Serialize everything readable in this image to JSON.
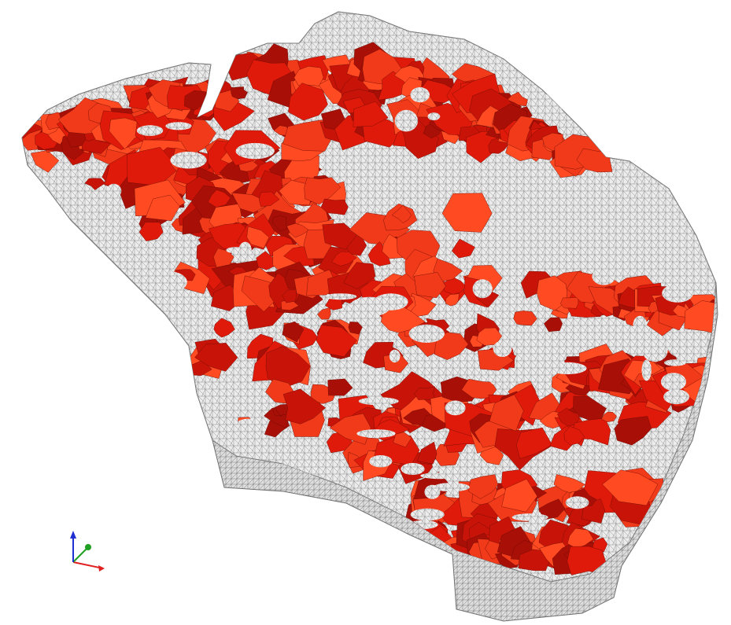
{
  "viewer": {
    "background": "#ffffff",
    "mesh_color": "#cfcfcf",
    "mesh_line_color": "#8a8a8a",
    "highlight_colors": [
      "#e01a0a",
      "#c81408",
      "#f03a1a",
      "#a80f06",
      "#ff4a22"
    ]
  },
  "axes": {
    "x_color": "#e02020",
    "y_color": "#20a020",
    "z_color": "#2030d0"
  }
}
